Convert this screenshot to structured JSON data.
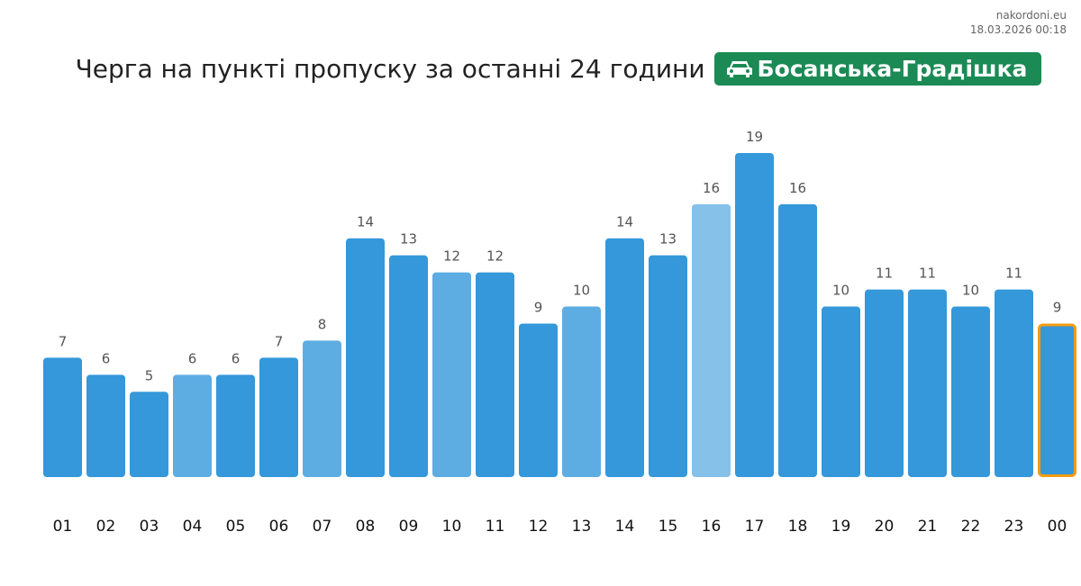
{
  "source": {
    "site": "nakordoni.eu",
    "timestamp": "18.03.2026 00:18"
  },
  "badge": {
    "icon": "car-icon",
    "label": "Босанська-Градішка",
    "color": "#1b8a55"
  },
  "chart_data": {
    "type": "bar",
    "title": "Черга на пункті пропуску за останні 24 години",
    "categories": [
      "01",
      "02",
      "03",
      "04",
      "05",
      "06",
      "07",
      "08",
      "09",
      "10",
      "11",
      "12",
      "13",
      "14",
      "15",
      "16",
      "17",
      "18",
      "19",
      "20",
      "21",
      "22",
      "23",
      "00"
    ],
    "values": [
      7,
      6,
      5,
      6,
      6,
      7,
      8,
      14,
      13,
      12,
      12,
      9,
      10,
      14,
      13,
      16,
      19,
      16,
      10,
      11,
      11,
      10,
      11,
      9
    ],
    "shade": [
      "d",
      "d",
      "d",
      "m",
      "d",
      "d",
      "m",
      "d",
      "d",
      "m",
      "d",
      "d",
      "m",
      "d",
      "d",
      "l",
      "d",
      "d",
      "d",
      "d",
      "d",
      "d",
      "d",
      "d"
    ],
    "colors": {
      "d": "#3498db",
      "m": "#5dade2",
      "l": "#85c1e9",
      "highlight_border": "#f39c12"
    },
    "highlighted": "00",
    "xlabel": "",
    "ylabel": "",
    "ylim": [
      0,
      19
    ],
    "grid": false
  }
}
